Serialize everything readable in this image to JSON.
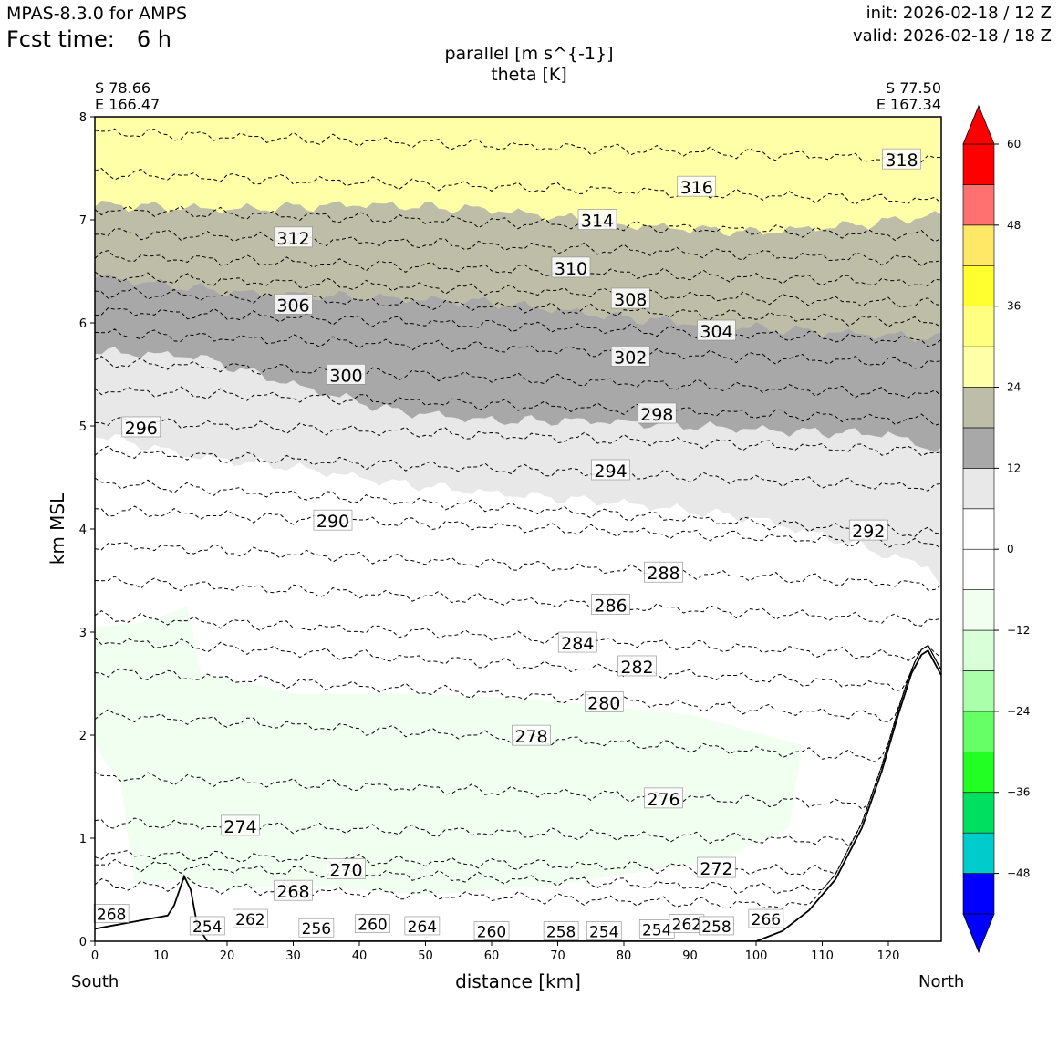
{
  "header": {
    "model": "MPAS-8.3.0 for AMPS",
    "fcst_label": "Fcst time:",
    "fcst_value": "6 h",
    "init": "init: 2026-02-18 / 12 Z",
    "valid": "valid: 2026-02-18 / 18 Z"
  },
  "cross_section": {
    "start_lat": "S 78.66",
    "start_lon": "E 166.47",
    "end_lat": "S 77.50",
    "end_lon": "E 167.34",
    "start_dir": "South",
    "end_dir": "North"
  },
  "chart_data": {
    "type": "contour",
    "title": "parallel [m s^{-1}]",
    "subtitle": "theta [K]",
    "xlabel": "distance [km]",
    "ylabel": "km MSL",
    "xlim": [
      0,
      128
    ],
    "ylim": [
      0,
      8
    ],
    "x_ticks": [
      0,
      10,
      20,
      30,
      40,
      50,
      60,
      70,
      80,
      90,
      100,
      110,
      120
    ],
    "y_ticks": [
      0,
      1,
      2,
      3,
      4,
      5,
      6,
      7,
      8
    ],
    "colorbar": {
      "ticks": [
        "60",
        "48",
        "36",
        "24",
        "12",
        "0",
        "−12",
        "−24",
        "−36",
        "−48"
      ],
      "levels": [
        -54,
        -48,
        -42,
        -36,
        -30,
        -24,
        -18,
        -12,
        -6,
        0,
        6,
        12,
        18,
        24,
        30,
        36,
        42,
        48,
        54,
        60
      ],
      "colors": [
        "#0000ff",
        "#00cccc",
        "#00e060",
        "#22ff22",
        "#66ff66",
        "#aaffaa",
        "#d8ffd8",
        "#f0fff0",
        "#ffffff",
        "#ffffff",
        "#e8e8e8",
        "#a8a8a8",
        "#bebea8",
        "#ffffa8",
        "#ffff80",
        "#ffff30",
        "#ffe866",
        "#ff7070",
        "#ff0000"
      ],
      "under_color": "#0000ff",
      "over_color": "#ff0000"
    },
    "shaded_regions": [
      {
        "name": "yellow",
        "range": "24-30",
        "color": "#ffffa8",
        "bottom": [
          [
            0,
            7.15
          ],
          [
            20,
            7.1
          ],
          [
            40,
            7.15
          ],
          [
            60,
            7.1
          ],
          [
            80,
            6.95
          ],
          [
            100,
            6.88
          ],
          [
            115,
            6.95
          ],
          [
            128,
            7.05
          ]
        ],
        "top": 8
      },
      {
        "name": "olive",
        "range": "18-24",
        "color": "#bebea8",
        "bottom": [
          [
            0,
            6.45
          ],
          [
            20,
            6.3
          ],
          [
            40,
            6.25
          ],
          [
            60,
            6.2
          ],
          [
            80,
            6.05
          ],
          [
            100,
            5.95
          ],
          [
            128,
            5.85
          ]
        ]
      },
      {
        "name": "grey",
        "range": "12-18",
        "color": "#a8a8a8",
        "bottom": [
          [
            0,
            5.72
          ],
          [
            15,
            5.68
          ],
          [
            30,
            5.4
          ],
          [
            45,
            5.15
          ],
          [
            60,
            5.05
          ],
          [
            75,
            5.05
          ],
          [
            90,
            5.0
          ],
          [
            105,
            4.95
          ],
          [
            120,
            4.92
          ],
          [
            128,
            4.75
          ]
        ]
      },
      {
        "name": "lightgrey",
        "range": "6-12",
        "color": "#e8e8e8",
        "bottom": [
          [
            0,
            4.92
          ],
          [
            15,
            4.7
          ],
          [
            30,
            4.6
          ],
          [
            45,
            4.45
          ],
          [
            60,
            4.35
          ],
          [
            80,
            4.25
          ],
          [
            100,
            4.1
          ],
          [
            115,
            3.85
          ],
          [
            122,
            3.7
          ],
          [
            126,
            3.65
          ],
          [
            128,
            3.45
          ]
        ]
      },
      {
        "name": "lightgreen",
        "range": "-12--6",
        "color": "#f0fff0",
        "area": [
          [
            0,
            3.05
          ],
          [
            8,
            3.1
          ],
          [
            14,
            3.25
          ],
          [
            16,
            2.6
          ],
          [
            30,
            2.4
          ],
          [
            50,
            2.4
          ],
          [
            66,
            2.35
          ],
          [
            90,
            2.2
          ],
          [
            107,
            1.9
          ],
          [
            105,
            1.1
          ],
          [
            95,
            0.8
          ],
          [
            70,
            0.55
          ],
          [
            50,
            0.45
          ],
          [
            30,
            0.55
          ],
          [
            20,
            0.5
          ],
          [
            12,
            0.6
          ],
          [
            6,
            0.55
          ],
          [
            4,
            1.5
          ],
          [
            0,
            1.9
          ]
        ]
      }
    ],
    "terrain": [
      [
        0,
        0.12
      ],
      [
        5,
        0.18
      ],
      [
        11,
        0.25
      ],
      [
        12,
        0.35
      ],
      [
        13.5,
        0.63
      ],
      [
        14.5,
        0.5
      ],
      [
        15.5,
        0.15
      ],
      [
        17,
        0
      ],
      [
        100,
        0
      ],
      [
        104,
        0.1
      ],
      [
        108,
        0.3
      ],
      [
        112,
        0.6
      ],
      [
        116,
        1.1
      ],
      [
        119,
        1.65
      ],
      [
        121.5,
        2.2
      ],
      [
        123.5,
        2.6
      ],
      [
        125,
        2.78
      ],
      [
        126,
        2.82
      ],
      [
        127,
        2.7
      ],
      [
        128,
        2.58
      ]
    ],
    "theta_contours": [
      {
        "value": 318,
        "y0": 7.85,
        "y1": 7.58,
        "label": "318",
        "label_x": 122
      },
      {
        "value": 316,
        "y0": 7.45,
        "y1": 7.18,
        "label": "316",
        "label_x": 91
      },
      {
        "value": 314,
        "y0": 7.1,
        "y1": 6.84,
        "label": "314",
        "label_x": 76
      },
      {
        "value": 312,
        "y0": 6.88,
        "y1": 6.6,
        "label": "312",
        "label_x": 30
      },
      {
        "value": 310,
        "y0": 6.65,
        "y1": 6.38,
        "label": "310",
        "label_x": 72
      },
      {
        "value": 308,
        "y0": 6.45,
        "y1": 6.18,
        "label": "308",
        "label_x": 81
      },
      {
        "value": 306,
        "y0": 6.3,
        "y1": 6.0,
        "label": "306",
        "label_x": 30
      },
      {
        "value": 304,
        "y0": 6.12,
        "y1": 5.82,
        "label": "304",
        "label_x": 94
      },
      {
        "value": 302,
        "y0": 5.9,
        "y1": 5.6,
        "label": "302",
        "label_x": 81
      },
      {
        "value": 300,
        "y0": 5.62,
        "y1": 5.3,
        "label": "300",
        "label_x": 38
      },
      {
        "value": 298,
        "y0": 5.35,
        "y1": 5.05,
        "label": "298",
        "label_x": 85
      },
      {
        "value": 296,
        "y0": 5.05,
        "y1": 4.75,
        "label": "296",
        "label_x": 7
      },
      {
        "value": 294,
        "y0": 4.75,
        "y1": 4.4,
        "label": "294",
        "label_x": 78
      },
      {
        "value": 292,
        "y0": 4.45,
        "y1": 3.95,
        "label": "292",
        "label_x": 117
      },
      {
        "value": 290,
        "y0": 4.18,
        "y1": 3.85,
        "label": "290",
        "label_x": 36
      },
      {
        "value": 288,
        "y0": 3.85,
        "y1": 3.45,
        "label": "288",
        "label_x": 86
      },
      {
        "value": 286,
        "y0": 3.5,
        "y1": 3.1,
        "label": "286",
        "label_x": 78
      },
      {
        "value": 284,
        "y0": 3.15,
        "y1": 2.75,
        "label": "284",
        "label_x": 73
      },
      {
        "value": 282,
        "y0": 2.92,
        "y1": 2.45,
        "label": "282",
        "label_x": 82
      },
      {
        "value": 280,
        "y0": 2.62,
        "y1": 2.15,
        "label": "280",
        "label_x": 77
      },
      {
        "value": 278,
        "y0": 2.2,
        "y1": 1.75,
        "label": "278",
        "label_x": 66
      },
      {
        "value": 276,
        "y0": 1.6,
        "y1": 1.3,
        "label": "276",
        "label_x": 86
      },
      {
        "value": 274,
        "y0": 1.15,
        "y1": 0.95,
        "label": "274",
        "label_x": 22
      },
      {
        "value": 272,
        "y0": 0.85,
        "y1": 0.65,
        "label": "272",
        "label_x": 94
      },
      {
        "value": 270,
        "y0": 0.75,
        "y1": 0.45,
        "label": "270",
        "label_x": 38
      },
      {
        "value": 268,
        "y0": 0.55,
        "y1": 0.3,
        "label": "268",
        "label_x": 30
      }
    ],
    "near_surface_labels": [
      {
        "text": "268",
        "x": 2.5,
        "y": 0.2
      },
      {
        "text": "254",
        "x": 17,
        "y": 0.08
      },
      {
        "text": "262",
        "x": 23.5,
        "y": 0.15
      },
      {
        "text": "256",
        "x": 33.5,
        "y": 0.06
      },
      {
        "text": "260",
        "x": 42,
        "y": 0.1
      },
      {
        "text": "264",
        "x": 49.5,
        "y": 0.08
      },
      {
        "text": "260",
        "x": 60,
        "y": 0.03
      },
      {
        "text": "258",
        "x": 70.5,
        "y": 0.03
      },
      {
        "text": "254",
        "x": 77,
        "y": 0.03
      },
      {
        "text": "254",
        "x": 85,
        "y": 0.05
      },
      {
        "text": "262",
        "x": 89.5,
        "y": 0.1
      },
      {
        "text": "258",
        "x": 94,
        "y": 0.08
      },
      {
        "text": "266",
        "x": 101.5,
        "y": 0.15
      }
    ]
  }
}
